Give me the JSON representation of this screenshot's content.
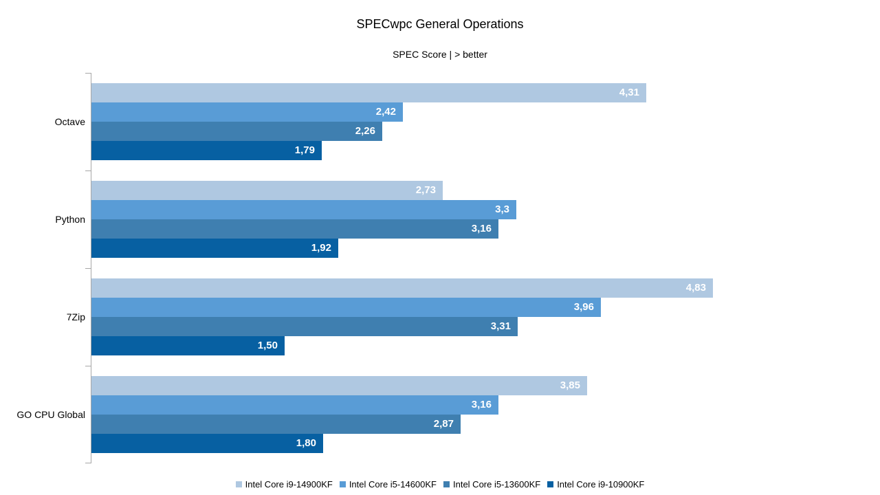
{
  "chart_data": {
    "type": "bar",
    "orientation": "horizontal",
    "title": "SPECwpc General Operations",
    "subtitle": "SPEC Score | > better",
    "xlabel": "",
    "ylabel": "",
    "xlim": [
      0,
      5
    ],
    "grid": false,
    "legend_position": "bottom",
    "decimal_separator": ",",
    "categories": [
      "Octave",
      "Python",
      "7Zip",
      "GO CPU Global"
    ],
    "series": [
      {
        "name": "Intel Core i9-14900KF",
        "color": "#AFC8E1",
        "values": [
          4.31,
          2.73,
          4.83,
          3.85
        ],
        "labels": [
          "4,31",
          "2,73",
          "4,83",
          "3,85"
        ]
      },
      {
        "name": "Intel Core i5-14600KF",
        "color": "#599CD6",
        "values": [
          2.42,
          3.3,
          3.96,
          3.16
        ],
        "labels": [
          "2,42",
          "3,3",
          "3,96",
          "3,16"
        ]
      },
      {
        "name": "Intel Core i5-13600KF",
        "color": "#3F7FB0",
        "values": [
          2.26,
          3.16,
          3.31,
          2.87
        ],
        "labels": [
          "2,26",
          "3,16",
          "3,31",
          "2,87"
        ]
      },
      {
        "name": "Intel Core i9-10900KF",
        "color": "#0760A2",
        "values": [
          1.79,
          1.92,
          1.5,
          1.8
        ],
        "labels": [
          "1,79",
          "1,92",
          "1,50",
          "1,80"
        ]
      }
    ]
  }
}
